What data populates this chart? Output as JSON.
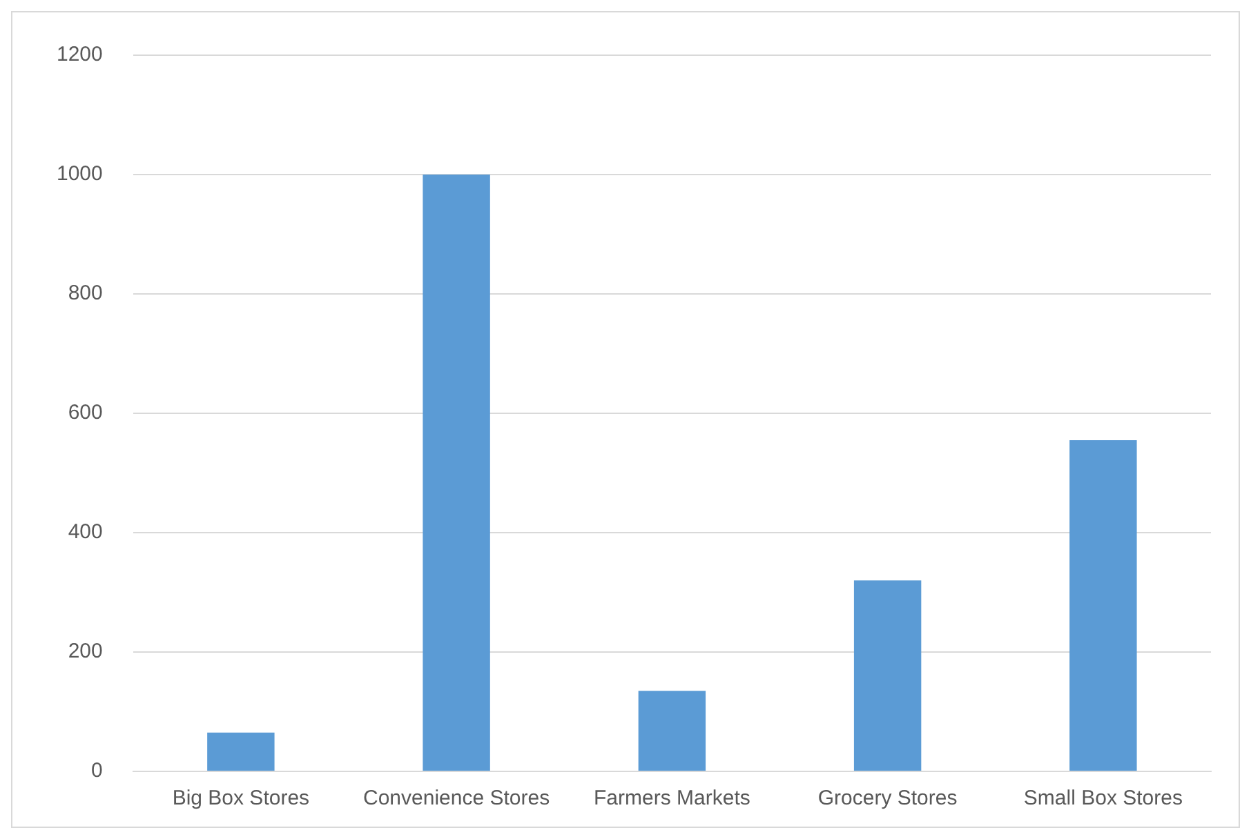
{
  "chart_data": {
    "type": "bar",
    "categories": [
      "Big Box Stores",
      "Convenience Stores",
      "Farmers Markets",
      "Grocery Stores",
      "Small Box Stores"
    ],
    "values": [
      65,
      1000,
      135,
      320,
      555
    ],
    "color": "#5b9bd5",
    "ylim": [
      0,
      1200
    ],
    "yticks": [
      0,
      200,
      400,
      600,
      800,
      1000,
      1200
    ],
    "grid": "y"
  }
}
